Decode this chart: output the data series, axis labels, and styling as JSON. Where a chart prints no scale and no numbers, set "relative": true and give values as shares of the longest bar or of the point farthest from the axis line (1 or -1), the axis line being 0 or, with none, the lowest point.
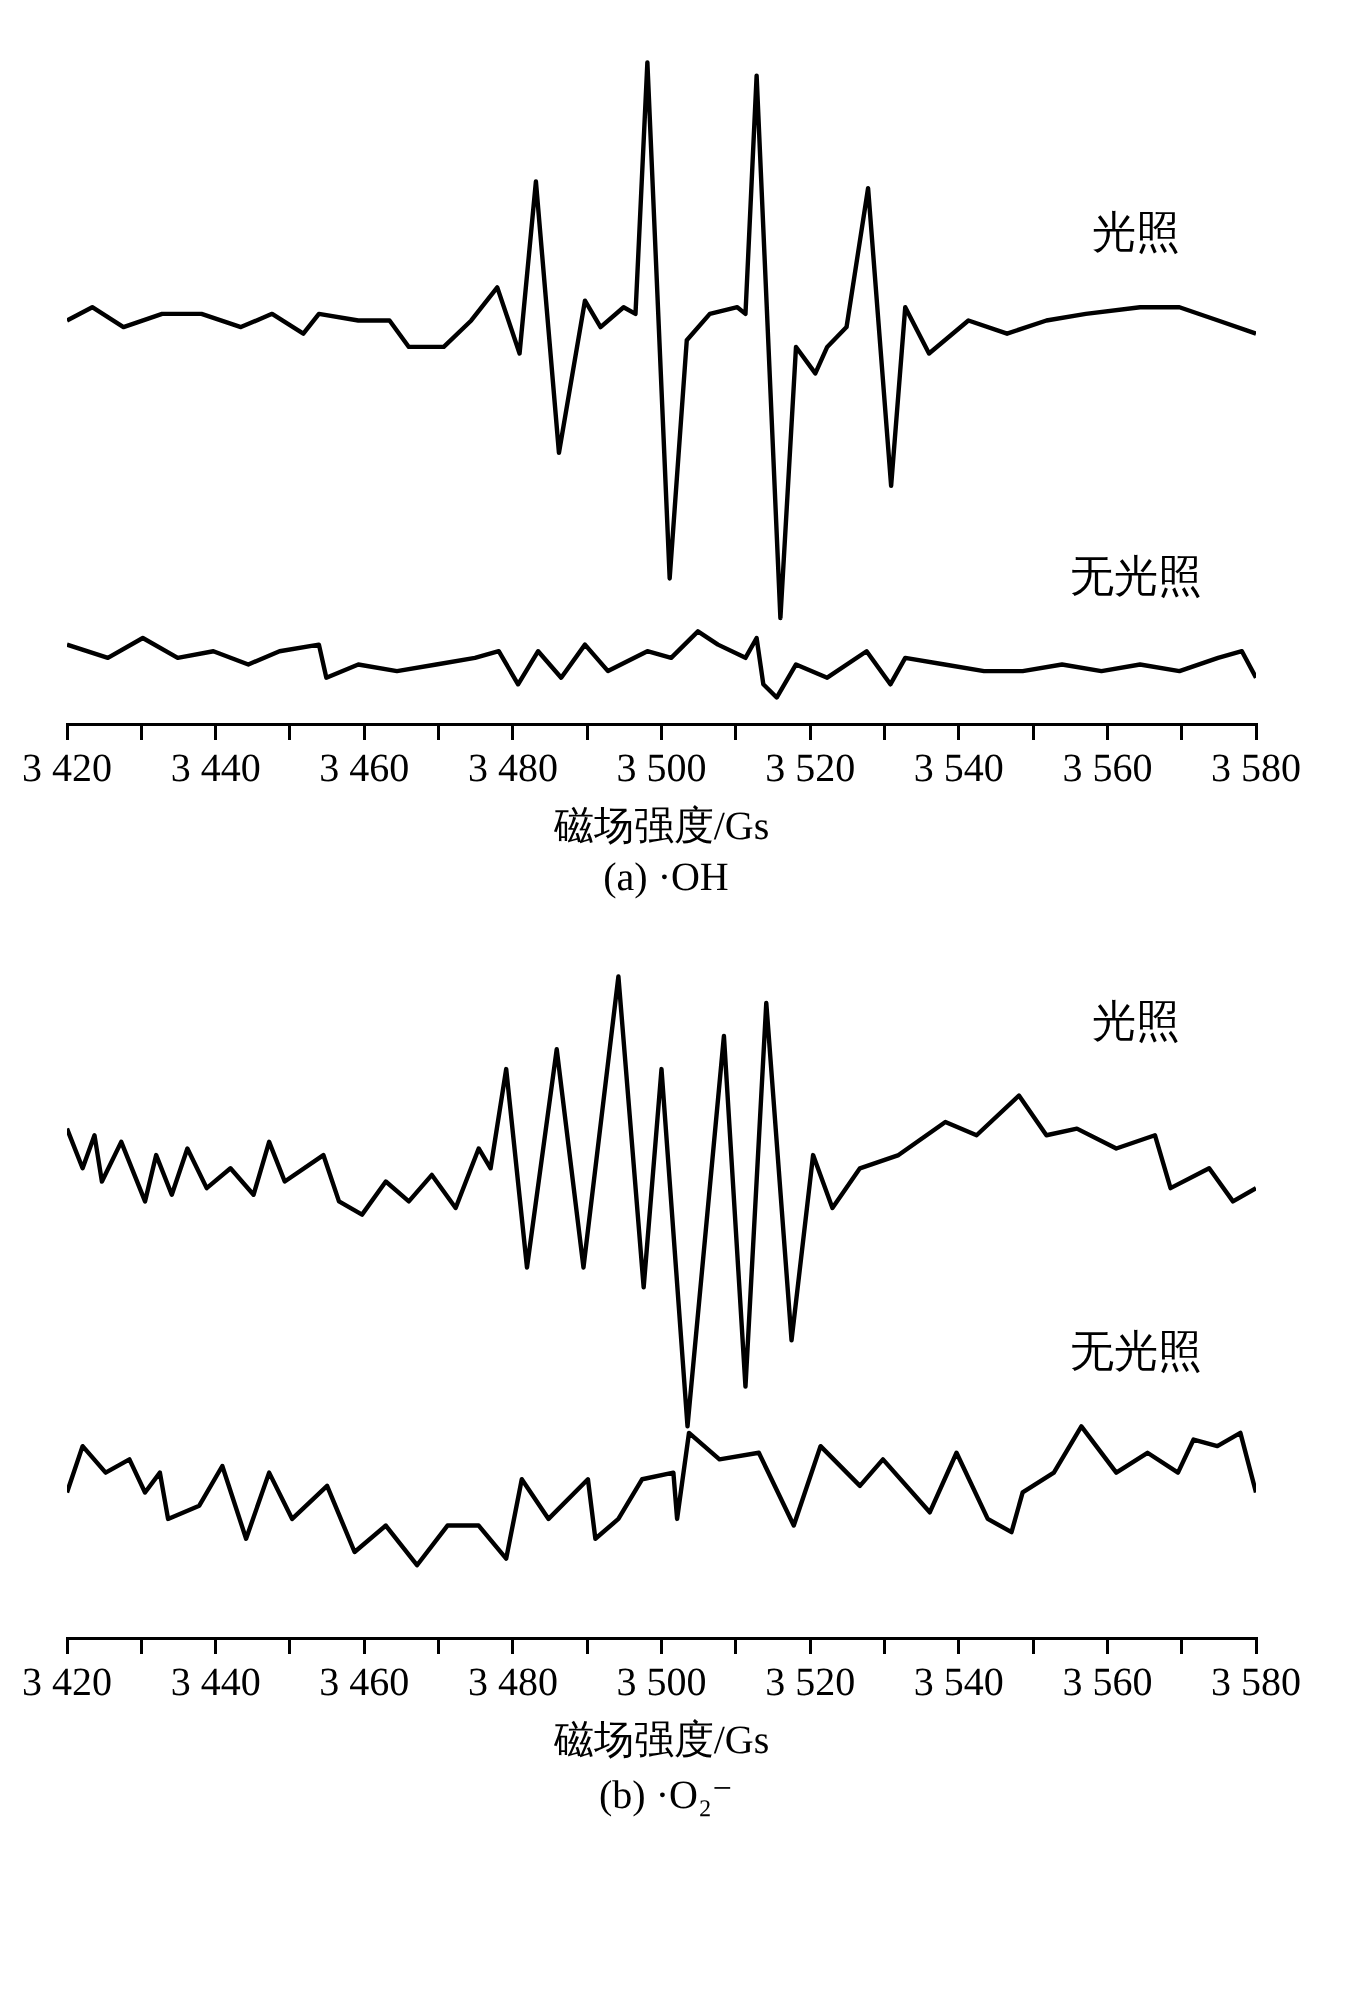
{
  "chart_data": [
    {
      "type": "line",
      "relative": true,
      "xlabel": "磁场强度/Gs",
      "annotations": [
        "(a) ·OH"
      ],
      "xlim": [
        3420,
        3580
      ],
      "xticks": [
        {
          "value": 3420,
          "label": "3 420"
        },
        {
          "value": 3430,
          "label": null
        },
        {
          "value": 3440,
          "label": "3 440"
        },
        {
          "value": 3450,
          "label": null
        },
        {
          "value": 3460,
          "label": "3 460"
        },
        {
          "value": 3470,
          "label": null
        },
        {
          "value": 3480,
          "label": "3 480"
        },
        {
          "value": 3490,
          "label": null
        },
        {
          "value": 3500,
          "label": "3 500"
        },
        {
          "value": 3510,
          "label": null
        },
        {
          "value": 3520,
          "label": "3 520"
        },
        {
          "value": 3530,
          "label": null
        },
        {
          "value": 3540,
          "label": "3 540"
        },
        {
          "value": 3550,
          "label": null
        },
        {
          "value": 3560,
          "label": "3 560"
        },
        {
          "value": 3570,
          "label": null
        },
        {
          "value": 3580,
          "label": "3 580"
        }
      ],
      "grid": false,
      "legend": false,
      "marker": "none",
      "line_style": "solid",
      "series": [
        {
          "name": "光照",
          "color": "#000000",
          "x": [
            3420.0,
            3423.4,
            3427.6,
            3432.8,
            3438.1,
            3443.4,
            3447.6,
            3451.8,
            3453.9,
            3459.2,
            3463.4,
            3466.0,
            3470.7,
            3474.4,
            3477.9,
            3480.9,
            3483.1,
            3486.2,
            3489.7,
            3491.8,
            3494.9,
            3496.5,
            3498.1,
            3501.1,
            3503.4,
            3506.5,
            3510.2,
            3511.3,
            3512.8,
            3516.0,
            3518.1,
            3520.7,
            3522.3,
            3524.9,
            3527.8,
            3530.9,
            3532.8,
            3536.0,
            3541.3,
            3546.5,
            3551.8,
            3557.1,
            3564.4,
            3569.7,
            3574.9,
            3580.0
          ],
          "values": [
            0.61,
            0.63,
            0.6,
            0.62,
            0.62,
            0.6,
            0.62,
            0.59,
            0.62,
            0.61,
            0.61,
            0.57,
            0.57,
            0.61,
            0.66,
            0.56,
            0.82,
            0.41,
            0.64,
            0.6,
            0.63,
            0.62,
            1.0,
            0.22,
            0.58,
            0.62,
            0.63,
            0.62,
            0.98,
            0.16,
            0.57,
            0.53,
            0.57,
            0.6,
            0.81,
            0.36,
            0.63,
            0.56,
            0.61,
            0.59,
            0.61,
            0.62,
            0.63,
            0.63,
            0.61,
            0.59
          ]
        },
        {
          "name": "无光照",
          "color": "#000000",
          "x": [
            3420.0,
            3425.5,
            3430.2,
            3434.9,
            3439.7,
            3444.4,
            3448.6,
            3453.9,
            3454.9,
            3459.2,
            3464.4,
            3469.7,
            3474.9,
            3478.1,
            3480.7,
            3483.4,
            3486.5,
            3489.7,
            3492.8,
            3498.1,
            3501.3,
            3504.9,
            3507.6,
            3511.3,
            3512.8,
            3513.7,
            3515.5,
            3518.1,
            3522.3,
            3527.6,
            3530.8,
            3532.8,
            3538.1,
            3543.4,
            3548.6,
            3553.9,
            3559.2,
            3564.4,
            3569.7,
            3574.9,
            3578.1,
            3580.0
          ],
          "values": [
            0.12,
            0.1,
            0.13,
            0.1,
            0.11,
            0.09,
            0.11,
            0.12,
            0.07,
            0.09,
            0.08,
            0.09,
            0.1,
            0.11,
            0.06,
            0.11,
            0.07,
            0.12,
            0.08,
            0.11,
            0.1,
            0.14,
            0.12,
            0.1,
            0.13,
            0.06,
            0.04,
            0.09,
            0.07,
            0.11,
            0.06,
            0.1,
            0.09,
            0.08,
            0.08,
            0.09,
            0.08,
            0.09,
            0.08,
            0.1,
            0.11,
            0.07
          ]
        }
      ]
    },
    {
      "type": "line",
      "relative": true,
      "xlabel": "磁场强度/Gs",
      "annotations": [
        "(b) ·O₂⁻"
      ],
      "xlim": [
        3420,
        3580
      ],
      "xticks": [
        {
          "value": 3420,
          "label": "3 420"
        },
        {
          "value": 3430,
          "label": null
        },
        {
          "value": 3440,
          "label": "3 440"
        },
        {
          "value": 3450,
          "label": null
        },
        {
          "value": 3460,
          "label": "3 460"
        },
        {
          "value": 3470,
          "label": null
        },
        {
          "value": 3480,
          "label": "3 480"
        },
        {
          "value": 3490,
          "label": null
        },
        {
          "value": 3500,
          "label": "3 500"
        },
        {
          "value": 3510,
          "label": null
        },
        {
          "value": 3520,
          "label": "3 520"
        },
        {
          "value": 3530,
          "label": null
        },
        {
          "value": 3540,
          "label": "3 540"
        },
        {
          "value": 3550,
          "label": null
        },
        {
          "value": 3560,
          "label": "3 560"
        },
        {
          "value": 3570,
          "label": null
        },
        {
          "value": 3580,
          "label": "3 580"
        }
      ],
      "grid": false,
      "legend": false,
      "marker": "none",
      "line_style": "solid",
      "series": [
        {
          "name": "光照",
          "color": "#000000",
          "x": [
            3420.0,
            3422.1,
            3423.7,
            3424.7,
            3427.3,
            3430.5,
            3432.0,
            3434.1,
            3436.2,
            3438.8,
            3442.0,
            3445.1,
            3447.2,
            3449.3,
            3454.5,
            3456.6,
            3459.7,
            3462.9,
            3466.0,
            3469.1,
            3472.3,
            3475.4,
            3477.0,
            3479.1,
            3481.9,
            3485.9,
            3489.5,
            3494.2,
            3497.6,
            3500.0,
            3503.5,
            3508.4,
            3511.3,
            3514.1,
            3517.5,
            3520.4,
            3523.0,
            3526.7,
            3531.9,
            3538.2,
            3542.4,
            3548.1,
            3551.8,
            3555.9,
            3561.2,
            3566.4,
            3568.5,
            3573.7,
            3576.9,
            3580.0
          ],
          "values": [
            0.77,
            0.71,
            0.76,
            0.69,
            0.75,
            0.66,
            0.73,
            0.67,
            0.74,
            0.68,
            0.71,
            0.67,
            0.75,
            0.69,
            0.73,
            0.66,
            0.64,
            0.69,
            0.66,
            0.7,
            0.65,
            0.74,
            0.71,
            0.86,
            0.56,
            0.89,
            0.56,
            1.0,
            0.53,
            0.86,
            0.32,
            0.91,
            0.38,
            0.96,
            0.45,
            0.73,
            0.65,
            0.71,
            0.73,
            0.78,
            0.76,
            0.82,
            0.76,
            0.77,
            0.74,
            0.76,
            0.68,
            0.71,
            0.66,
            0.68
          ]
        },
        {
          "name": "无光照",
          "color": "#000000",
          "x": [
            3420.0,
            3422.1,
            3425.2,
            3428.4,
            3430.5,
            3432.5,
            3433.6,
            3437.8,
            3440.9,
            3444.1,
            3447.2,
            3450.3,
            3455.0,
            3458.7,
            3462.9,
            3467.1,
            3471.2,
            3475.4,
            3479.1,
            3481.2,
            3484.8,
            3490.1,
            3491.1,
            3494.2,
            3497.4,
            3501.6,
            3502.1,
            3503.7,
            3507.8,
            3513.1,
            3517.8,
            3521.4,
            3526.7,
            3529.8,
            3536.1,
            3539.7,
            3543.9,
            3547.1,
            3548.6,
            3552.8,
            3556.5,
            3561.2,
            3565.4,
            3569.5,
            3571.6,
            3574.8,
            3577.9,
            3580.0
          ],
          "values": [
            0.22,
            0.29,
            0.25,
            0.27,
            0.22,
            0.25,
            0.18,
            0.2,
            0.26,
            0.15,
            0.25,
            0.18,
            0.23,
            0.13,
            0.17,
            0.11,
            0.17,
            0.17,
            0.12,
            0.24,
            0.18,
            0.24,
            0.15,
            0.18,
            0.24,
            0.25,
            0.18,
            0.31,
            0.27,
            0.28,
            0.17,
            0.29,
            0.23,
            0.27,
            0.19,
            0.28,
            0.18,
            0.16,
            0.22,
            0.25,
            0.32,
            0.25,
            0.28,
            0.25,
            0.3,
            0.29,
            0.31,
            0.22
          ]
        }
      ]
    }
  ]
}
